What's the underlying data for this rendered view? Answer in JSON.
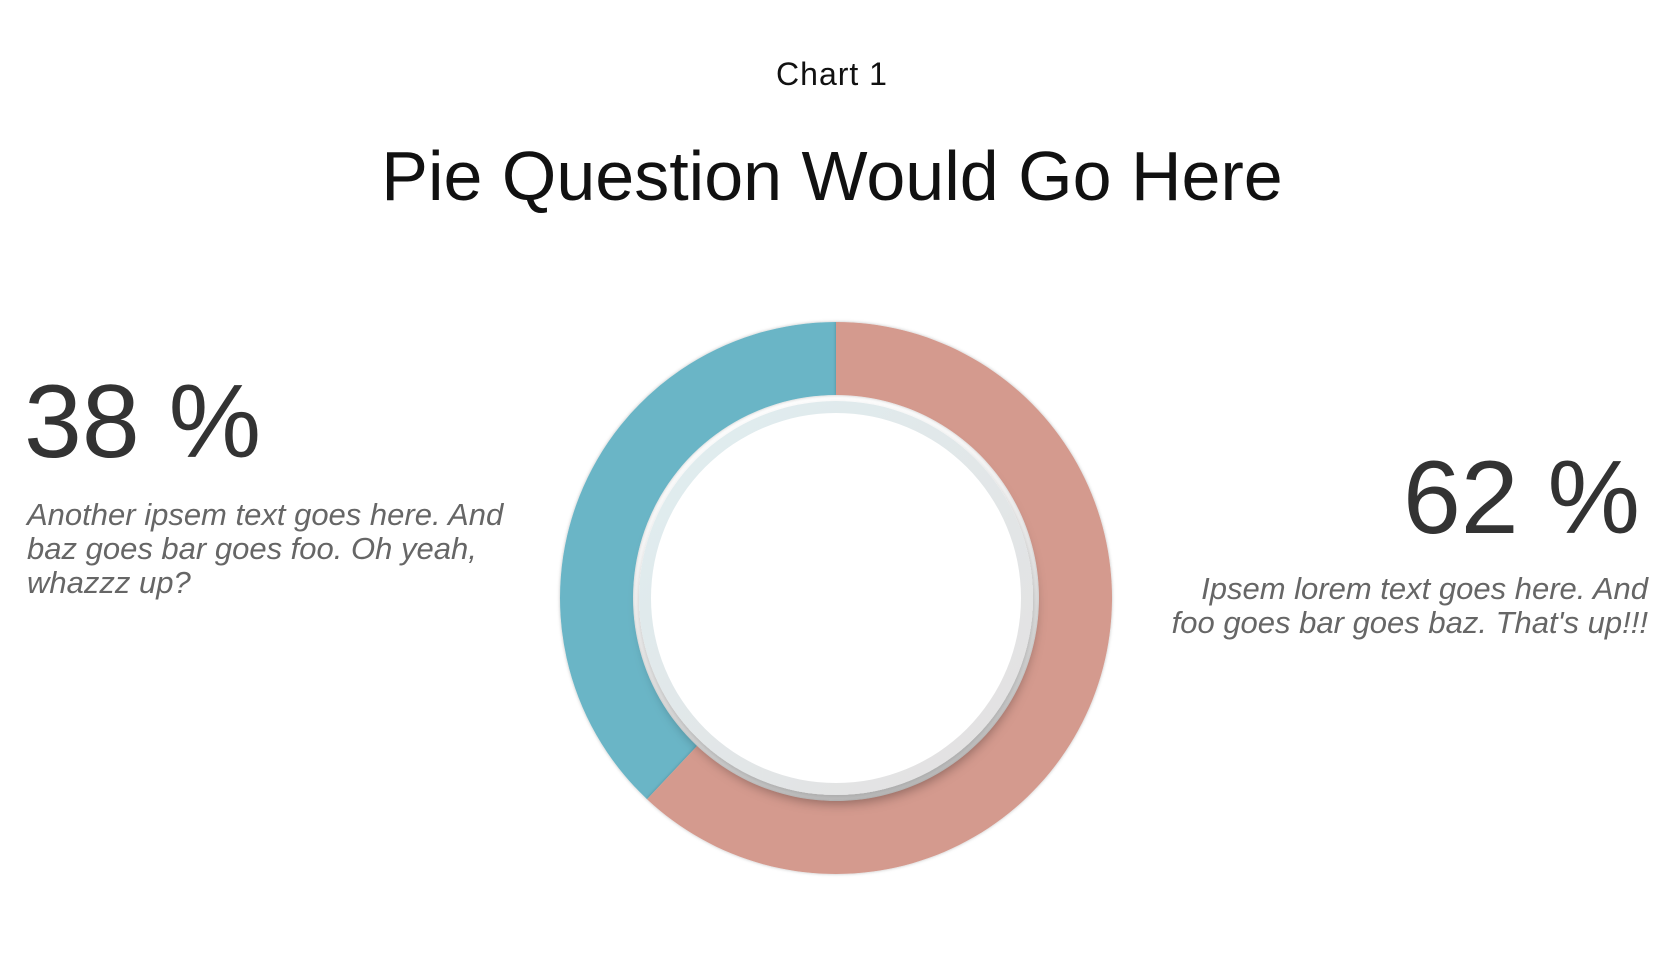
{
  "header": {
    "chart_label": "Chart 1",
    "question": "Pie Question Would Go Here"
  },
  "chart_data": {
    "type": "pie",
    "variant": "donut",
    "title": "Pie Question Would Go Here",
    "categories": [
      "Another ipsem text goes here. And baz goes bar goes foo. Oh yeah, whazzz up?",
      "Ipsem lorem text goes here. And foo goes bar goes baz. That's up!!!"
    ],
    "values": [
      38,
      62
    ],
    "colors": [
      "#6ab5c6",
      "#d49a8e"
    ],
    "labels": [
      "38 %",
      "62 %"
    ]
  },
  "left": {
    "percent": "38 %",
    "description": "Another ipsem text goes here. And baz goes bar goes foo. Oh yeah, whazzz up?"
  },
  "right": {
    "percent": "62 %",
    "description": "Ipsem lorem text goes here. And foo goes bar goes baz. That's up!!!"
  }
}
